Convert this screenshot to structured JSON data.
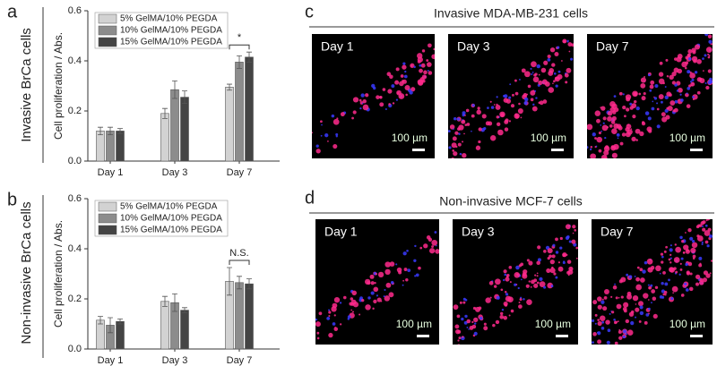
{
  "panel_labels": [
    "a",
    "b",
    "c",
    "d"
  ],
  "row_labels": [
    "Invasive BrCa cells",
    "Non-invasive BrCa cells"
  ],
  "chart_data": [
    {
      "type": "bar",
      "ylabel": "Cell proliferation / Abs.",
      "categories": [
        "Day 1",
        "Day 3",
        "Day 7"
      ],
      "series": [
        {
          "name": "5% GelMA/10% PEGDA",
          "color": "#d2d2d2",
          "values": [
            0.12,
            0.19,
            0.295
          ],
          "errors": [
            0.015,
            0.02,
            0.012
          ]
        },
        {
          "name": "10% GelMA/10% PEGDA",
          "color": "#8c8c8c",
          "values": [
            0.12,
            0.285,
            0.395
          ],
          "errors": [
            0.015,
            0.035,
            0.025
          ]
        },
        {
          "name": "15% GelMA/10% PEGDA",
          "color": "#444444",
          "values": [
            0.12,
            0.255,
            0.415
          ],
          "errors": [
            0.01,
            0.025,
            0.02
          ]
        }
      ],
      "ylim": [
        0,
        0.6
      ],
      "yticks": [
        {
          "value": 0,
          "label": "0.0"
        },
        0.2,
        0.4,
        0.6
      ],
      "annotation": "*"
    },
    {
      "type": "bar",
      "ylabel": "Cell proliferation / Abs.",
      "categories": [
        "Day 1",
        "Day 3",
        "Day 7"
      ],
      "series": [
        {
          "name": "5% GelMA/10% PEGDA",
          "color": "#d2d2d2",
          "values": [
            0.115,
            0.19,
            0.27
          ],
          "errors": [
            0.015,
            0.02,
            0.055
          ]
        },
        {
          "name": "10% GelMA/10% PEGDA",
          "color": "#8c8c8c",
          "values": [
            0.095,
            0.185,
            0.265
          ],
          "errors": [
            0.03,
            0.035,
            0.025
          ]
        },
        {
          "name": "15% GelMA/10% PEGDA",
          "color": "#444444",
          "values": [
            0.11,
            0.155,
            0.26
          ],
          "errors": [
            0.01,
            0.01,
            0.02
          ]
        }
      ],
      "ylim": [
        0,
        0.6
      ],
      "yticks": [
        {
          "value": 0,
          "label": "0.0"
        },
        0.2,
        0.4,
        0.6
      ],
      "annotation": "N.S."
    }
  ],
  "image_panels": [
    {
      "title": "Invasive MDA-MB-231 cells",
      "days": [
        "Day 1",
        "Day 3",
        "Day 7"
      ],
      "scale_bar": "100 µm"
    },
    {
      "title": "Non-invasive MCF-7 cells",
      "days": [
        "Day 1",
        "Day 3",
        "Day 7"
      ],
      "scale_bar": "100 µm"
    }
  ]
}
